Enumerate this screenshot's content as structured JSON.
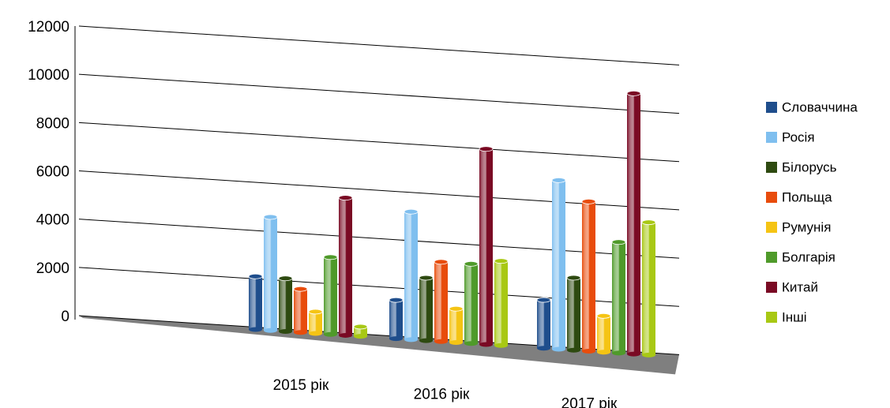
{
  "chart_data": {
    "type": "bar3d",
    "categories": [
      "2015 рік",
      "2016 рік",
      "2017 рік"
    ],
    "series": [
      {
        "name": "Словаччина",
        "color": "#1f4e8c",
        "values": [
          2200,
          1600,
          2000
        ]
      },
      {
        "name": "Росія",
        "color": "#7fbfef",
        "values": [
          4700,
          5300,
          7000
        ]
      },
      {
        "name": "Білорусь",
        "color": "#2e4a10",
        "values": [
          2200,
          2600,
          3000
        ]
      },
      {
        "name": "Польща",
        "color": "#e84c0c",
        "values": [
          1800,
          3300,
          6200
        ]
      },
      {
        "name": "Румунія",
        "color": "#f5c414",
        "values": [
          900,
          1400,
          1500
        ]
      },
      {
        "name": "Болгарія",
        "color": "#4f9a2a",
        "values": [
          3200,
          3300,
          4600
        ]
      },
      {
        "name": "Китай",
        "color": "#7a0a24",
        "values": [
          5700,
          8100,
          10800
        ]
      },
      {
        "name": "Інші",
        "color": "#a8c814",
        "values": [
          400,
          3500,
          5500
        ]
      }
    ],
    "ylim": [
      0,
      12000
    ],
    "yticks": [
      0,
      2000,
      4000,
      6000,
      8000,
      10000,
      12000
    ],
    "grid": true,
    "legend": "right"
  }
}
